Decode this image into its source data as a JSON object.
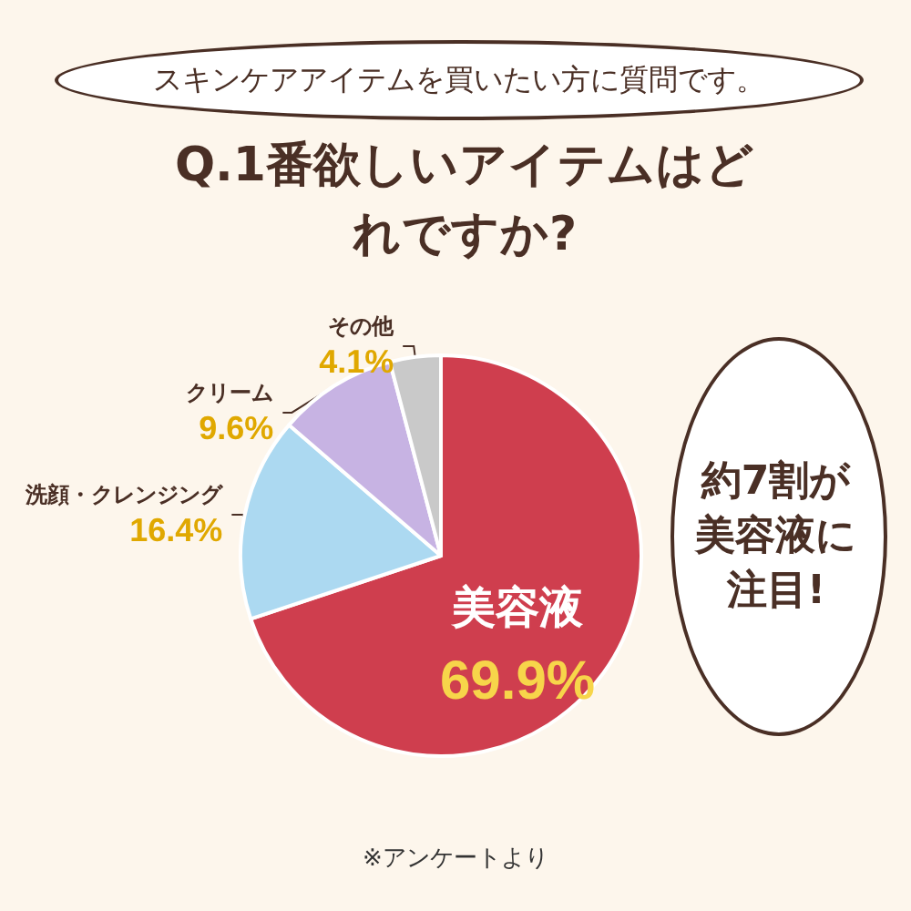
{
  "chart_data": {
    "type": "pie",
    "subtitle": "スキンケアアイテムを買いたい方に質問です。",
    "title": "Q.1番欲しいアイテムはどれですか?",
    "categories": [
      "美容液",
      "洗顔・クレンジング",
      "クリーム",
      "その他"
    ],
    "values": [
      69.9,
      16.4,
      9.6,
      4.1
    ],
    "colors": [
      "#cf3e4e",
      "#acd9f1",
      "#c7b3e3",
      "#c9c9c9"
    ],
    "value_labels": [
      "69.9%",
      "16.4%",
      "9.6%",
      "4.1%"
    ],
    "legend": false,
    "annotations": [
      "約7割が美容液に注目!",
      "※アンケートより"
    ]
  }
}
